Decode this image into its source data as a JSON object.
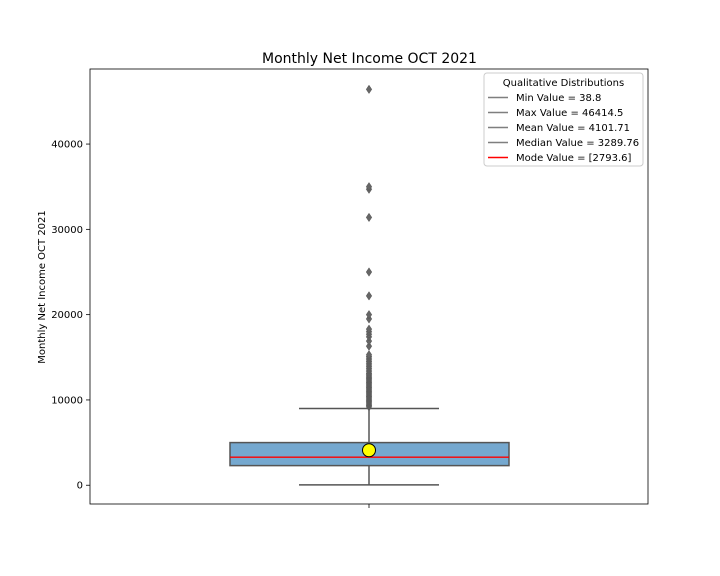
{
  "chart_data": {
    "type": "box",
    "title": "Monthly Net Income OCT 2021",
    "xlabel": "",
    "ylabel": "Monthly Net Income OCT 2021",
    "ylim": [
      -2200,
      48800
    ],
    "yticks": [
      0,
      10000,
      20000,
      30000,
      40000
    ],
    "grid": false,
    "box": {
      "whisker_low": 38.8,
      "q1": 2300,
      "median": 3289.76,
      "q3": 5000,
      "whisker_high": 9000,
      "mean": 4101.71,
      "mode": 2793.6,
      "box_color": "#75a8cf",
      "median_color": "#ff0000",
      "mean_marker_color": "#ffff00",
      "outliers": [
        9200,
        9350,
        9500,
        9650,
        9800,
        9950,
        10100,
        10250,
        10400,
        10550,
        10700,
        10850,
        11000,
        11150,
        11300,
        11450,
        11600,
        11750,
        11900,
        12050,
        12200,
        12350,
        12500,
        12650,
        12800,
        12950,
        13100,
        13300,
        13500,
        13700,
        13900,
        14100,
        14300,
        14500,
        14700,
        14900,
        15100,
        15300,
        16300,
        16900,
        17400,
        17700,
        18000,
        18300,
        19500,
        20000,
        22200,
        25000,
        31400,
        34700,
        35000,
        46414.5
      ]
    },
    "legend": {
      "title": "Qualitative Distributions",
      "placement": "top-right",
      "entries": [
        {
          "label": "Min Value = 38.8",
          "color": "#7f7f7f"
        },
        {
          "label": "Max Value = 46414.5",
          "color": "#7f7f7f"
        },
        {
          "label": "Mean Value = 4101.71",
          "color": "#7f7f7f"
        },
        {
          "label": "Median Value = 3289.76",
          "color": "#7f7f7f"
        },
        {
          "label": "Mode Value = [2793.6]",
          "color": "#ff0000"
        }
      ]
    }
  }
}
